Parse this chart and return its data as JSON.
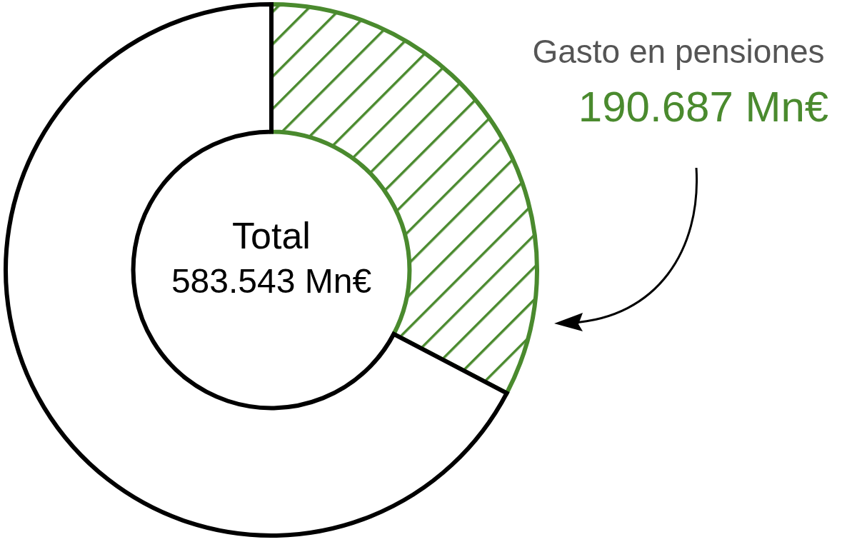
{
  "chart_data": {
    "type": "donut",
    "categories": [
      "Gasto en pensiones",
      null
    ],
    "values": [
      190687,
      392856
    ],
    "colors": [
      "#4a8a2e",
      "#000000"
    ],
    "value_labels": [
      "190.687 Mn€",
      null
    ],
    "annotations": [
      "Total",
      "583.543 Mn€"
    ]
  }
}
